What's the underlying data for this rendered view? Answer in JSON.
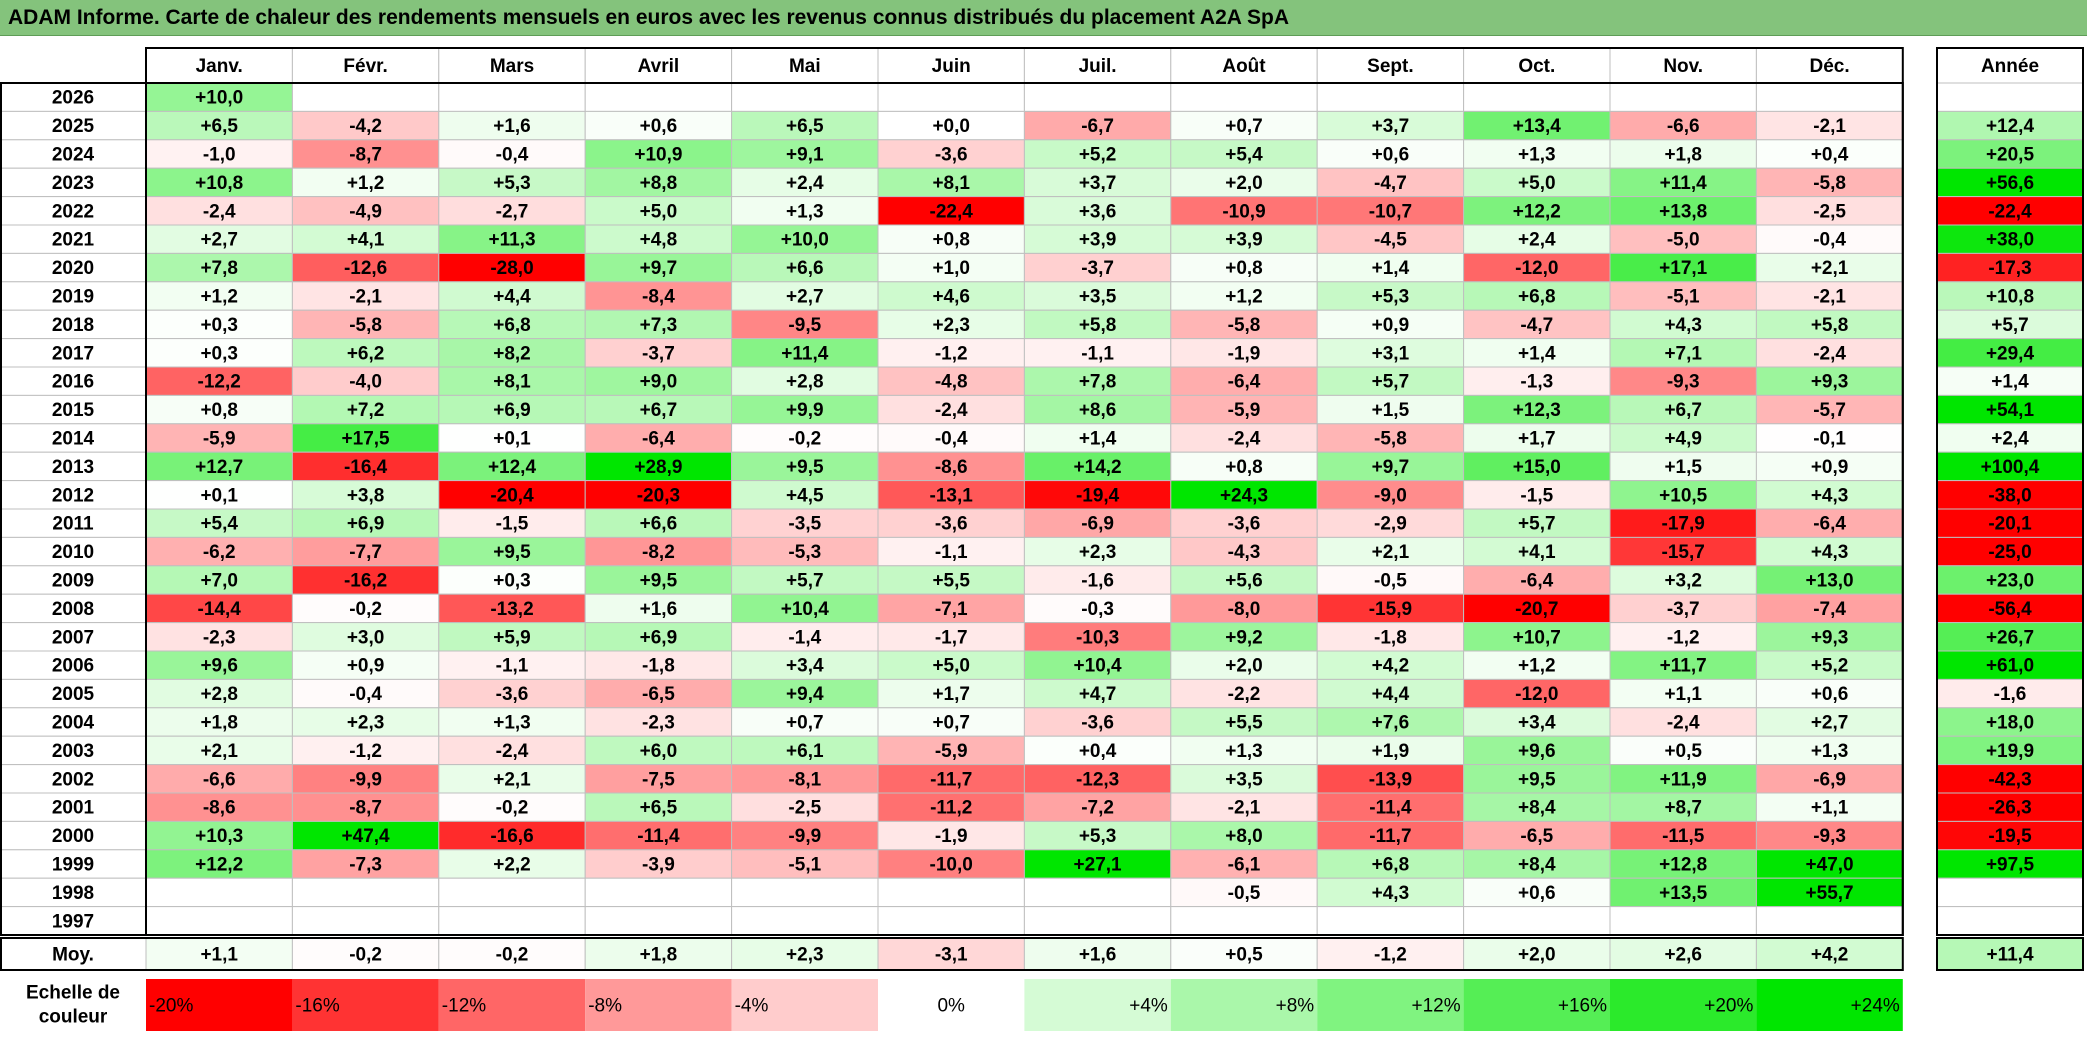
{
  "title": "ADAM Informe. Carte de chaleur des rendements mensuels en euros avec les revenus connus distribués du placement A2A SpA",
  "chart_data": {
    "type": "heatmap",
    "columns": [
      "Janv.",
      "Févr.",
      "Mars",
      "Avril",
      "Mai",
      "Juin",
      "Juil.",
      "Août",
      "Sept.",
      "Oct.",
      "Nov.",
      "Déc."
    ],
    "year_header": "Année",
    "rows": [
      {
        "year": "2026",
        "months": [
          "+10,0",
          null,
          null,
          null,
          null,
          null,
          null,
          null,
          null,
          null,
          null,
          null
        ],
        "annual": null
      },
      {
        "year": "2025",
        "months": [
          "+6,5",
          "-4,2",
          "+1,6",
          "+0,6",
          "+6,5",
          "+0,0",
          "-6,7",
          "+0,7",
          "+3,7",
          "+13,4",
          "-6,6",
          "-2,1"
        ],
        "annual": "+12,4"
      },
      {
        "year": "2024",
        "months": [
          "-1,0",
          "-8,7",
          "-0,4",
          "+10,9",
          "+9,1",
          "-3,6",
          "+5,2",
          "+5,4",
          "+0,6",
          "+1,3",
          "+1,8",
          "+0,4"
        ],
        "annual": "+20,5"
      },
      {
        "year": "2023",
        "months": [
          "+10,8",
          "+1,2",
          "+5,3",
          "+8,8",
          "+2,4",
          "+8,1",
          "+3,7",
          "+2,0",
          "-4,7",
          "+5,0",
          "+11,4",
          "-5,8"
        ],
        "annual": "+56,6"
      },
      {
        "year": "2022",
        "months": [
          "-2,4",
          "-4,9",
          "-2,7",
          "+5,0",
          "+1,3",
          "-22,4",
          "+3,6",
          "-10,9",
          "-10,7",
          "+12,2",
          "+13,8",
          "-2,5"
        ],
        "annual": "-22,4"
      },
      {
        "year": "2021",
        "months": [
          "+2,7",
          "+4,1",
          "+11,3",
          "+4,8",
          "+10,0",
          "+0,8",
          "+3,9",
          "+3,9",
          "-4,5",
          "+2,4",
          "-5,0",
          "-0,4"
        ],
        "annual": "+38,0"
      },
      {
        "year": "2020",
        "months": [
          "+7,8",
          "-12,6",
          "-28,0",
          "+9,7",
          "+6,6",
          "+1,0",
          "-3,7",
          "+0,8",
          "+1,4",
          "-12,0",
          "+17,1",
          "+2,1"
        ],
        "annual": "-17,3"
      },
      {
        "year": "2019",
        "months": [
          "+1,2",
          "-2,1",
          "+4,4",
          "-8,4",
          "+2,7",
          "+4,6",
          "+3,5",
          "+1,2",
          "+5,3",
          "+6,8",
          "-5,1",
          "-2,1"
        ],
        "annual": "+10,8"
      },
      {
        "year": "2018",
        "months": [
          "+0,3",
          "-5,8",
          "+6,8",
          "+7,3",
          "-9,5",
          "+2,3",
          "+5,8",
          "-5,8",
          "+0,9",
          "-4,7",
          "+4,3",
          "+5,8"
        ],
        "annual": "+5,7"
      },
      {
        "year": "2017",
        "months": [
          "+0,3",
          "+6,2",
          "+8,2",
          "-3,7",
          "+11,4",
          "-1,2",
          "-1,1",
          "-1,9",
          "+3,1",
          "+1,4",
          "+7,1",
          "-2,4"
        ],
        "annual": "+29,4"
      },
      {
        "year": "2016",
        "months": [
          "-12,2",
          "-4,0",
          "+8,1",
          "+9,0",
          "+2,8",
          "-4,8",
          "+7,8",
          "-6,4",
          "+5,7",
          "-1,3",
          "-9,3",
          "+9,3"
        ],
        "annual": "+1,4"
      },
      {
        "year": "2015",
        "months": [
          "+0,8",
          "+7,2",
          "+6,9",
          "+6,7",
          "+9,9",
          "-2,4",
          "+8,6",
          "-5,9",
          "+1,5",
          "+12,3",
          "+6,7",
          "-5,7"
        ],
        "annual": "+54,1"
      },
      {
        "year": "2014",
        "months": [
          "-5,9",
          "+17,5",
          "+0,1",
          "-6,4",
          "-0,2",
          "-0,4",
          "+1,4",
          "-2,4",
          "-5,8",
          "+1,7",
          "+4,9",
          "-0,1"
        ],
        "annual": "+2,4"
      },
      {
        "year": "2013",
        "months": [
          "+12,7",
          "-16,4",
          "+12,4",
          "+28,9",
          "+9,5",
          "-8,6",
          "+14,2",
          "+0,8",
          "+9,7",
          "+15,0",
          "+1,5",
          "+0,9"
        ],
        "annual": "+100,4"
      },
      {
        "year": "2012",
        "months": [
          "+0,1",
          "+3,8",
          "-20,4",
          "-20,3",
          "+4,5",
          "-13,1",
          "-19,4",
          "+24,3",
          "-9,0",
          "-1,5",
          "+10,5",
          "+4,3"
        ],
        "annual": "-38,0"
      },
      {
        "year": "2011",
        "months": [
          "+5,4",
          "+6,9",
          "-1,5",
          "+6,6",
          "-3,5",
          "-3,6",
          "-6,9",
          "-3,6",
          "-2,9",
          "+5,7",
          "-17,9",
          "-6,4"
        ],
        "annual": "-20,1"
      },
      {
        "year": "2010",
        "months": [
          "-6,2",
          "-7,7",
          "+9,5",
          "-8,2",
          "-5,3",
          "-1,1",
          "+2,3",
          "-4,3",
          "+2,1",
          "+4,1",
          "-15,7",
          "+4,3"
        ],
        "annual": "-25,0"
      },
      {
        "year": "2009",
        "months": [
          "+7,0",
          "-16,2",
          "+0,3",
          "+9,5",
          "+5,7",
          "+5,5",
          "-1,6",
          "+5,6",
          "-0,5",
          "-6,4",
          "+3,2",
          "+13,0"
        ],
        "annual": "+23,0"
      },
      {
        "year": "2008",
        "months": [
          "-14,4",
          "-0,2",
          "-13,2",
          "+1,6",
          "+10,4",
          "-7,1",
          "-0,3",
          "-8,0",
          "-15,9",
          "-20,7",
          "-3,7",
          "-7,4"
        ],
        "annual": "-56,4"
      },
      {
        "year": "2007",
        "months": [
          "-2,3",
          "+3,0",
          "+5,9",
          "+6,9",
          "-1,4",
          "-1,7",
          "-10,3",
          "+9,2",
          "-1,8",
          "+10,7",
          "-1,2",
          "+9,3"
        ],
        "annual": "+26,7"
      },
      {
        "year": "2006",
        "months": [
          "+9,6",
          "+0,9",
          "-1,1",
          "-1,8",
          "+3,4",
          "+5,0",
          "+10,4",
          "+2,0",
          "+4,2",
          "+1,2",
          "+11,7",
          "+5,2"
        ],
        "annual": "+61,0"
      },
      {
        "year": "2005",
        "months": [
          "+2,8",
          "-0,4",
          "-3,6",
          "-6,5",
          "+9,4",
          "+1,7",
          "+4,7",
          "-2,2",
          "+4,4",
          "-12,0",
          "+1,1",
          "+0,6"
        ],
        "annual": "-1,6"
      },
      {
        "year": "2004",
        "months": [
          "+1,8",
          "+2,3",
          "+1,3",
          "-2,3",
          "+0,7",
          "+0,7",
          "-3,6",
          "+5,5",
          "+7,6",
          "+3,4",
          "-2,4",
          "+2,7"
        ],
        "annual": "+18,0"
      },
      {
        "year": "2003",
        "months": [
          "+2,1",
          "-1,2",
          "-2,4",
          "+6,0",
          "+6,1",
          "-5,9",
          "+0,4",
          "+1,3",
          "+1,9",
          "+9,6",
          "+0,5",
          "+1,3"
        ],
        "annual": "+19,9"
      },
      {
        "year": "2002",
        "months": [
          "-6,6",
          "-9,9",
          "+2,1",
          "-7,5",
          "-8,1",
          "-11,7",
          "-12,3",
          "+3,5",
          "-13,9",
          "+9,5",
          "+11,9",
          "-6,9"
        ],
        "annual": "-42,3"
      },
      {
        "year": "2001",
        "months": [
          "-8,6",
          "-8,7",
          "-0,2",
          "+6,5",
          "-2,5",
          "-11,2",
          "-7,2",
          "-2,1",
          "-11,4",
          "+8,4",
          "+8,7",
          "+1,1"
        ],
        "annual": "-26,3"
      },
      {
        "year": "2000",
        "months": [
          "+10,3",
          "+47,4",
          "-16,6",
          "-11,4",
          "-9,9",
          "-1,9",
          "+5,3",
          "+8,0",
          "-11,7",
          "-6,5",
          "-11,5",
          "-9,3"
        ],
        "annual": "-19,5"
      },
      {
        "year": "1999",
        "months": [
          "+12,2",
          "-7,3",
          "+2,2",
          "-3,9",
          "-5,1",
          "-10,0",
          "+27,1",
          "-6,1",
          "+6,8",
          "+8,4",
          "+12,8",
          "+47,0"
        ],
        "annual": "+97,5"
      },
      {
        "year": "1998",
        "months": [
          null,
          null,
          null,
          null,
          null,
          null,
          null,
          "-0,5",
          "+4,3",
          "+0,6",
          "+13,5",
          "+55,7"
        ],
        "annual": null
      },
      {
        "year": "1997",
        "months": [
          null,
          null,
          null,
          null,
          null,
          null,
          null,
          null,
          null,
          null,
          null,
          null
        ],
        "annual": null
      }
    ],
    "average": {
      "label": "Moy.",
      "months": [
        "+1,1",
        "-0,2",
        "-0,2",
        "+1,8",
        "+2,3",
        "-3,1",
        "+1,6",
        "+0,5",
        "-1,2",
        "+2,0",
        "+2,6",
        "+4,2"
      ],
      "annual": "+11,4"
    },
    "scale": {
      "label_line1": "Echelle de",
      "label_line2": "couleur",
      "steps": [
        {
          "label": "-20%",
          "value": -20
        },
        {
          "label": "-16%",
          "value": -16
        },
        {
          "label": "-12%",
          "value": -12
        },
        {
          "label": "-8%",
          "value": -8
        },
        {
          "label": "-4%",
          "value": -4
        },
        {
          "label": "0%",
          "value": 0
        },
        {
          "label": "+4%",
          "value": 4
        },
        {
          "label": "+8%",
          "value": 8
        },
        {
          "label": "+12%",
          "value": 12
        },
        {
          "label": "+16%",
          "value": 16
        },
        {
          "label": "+20%",
          "value": 20
        },
        {
          "label": "+24%",
          "value": 24
        }
      ]
    },
    "colors": {
      "title_bar": "#84c37c",
      "max_red": "#ff0000",
      "max_green": "#00e600",
      "neutral": "#ffffff",
      "border": "#000000",
      "grid": "#bfbfbf"
    }
  }
}
